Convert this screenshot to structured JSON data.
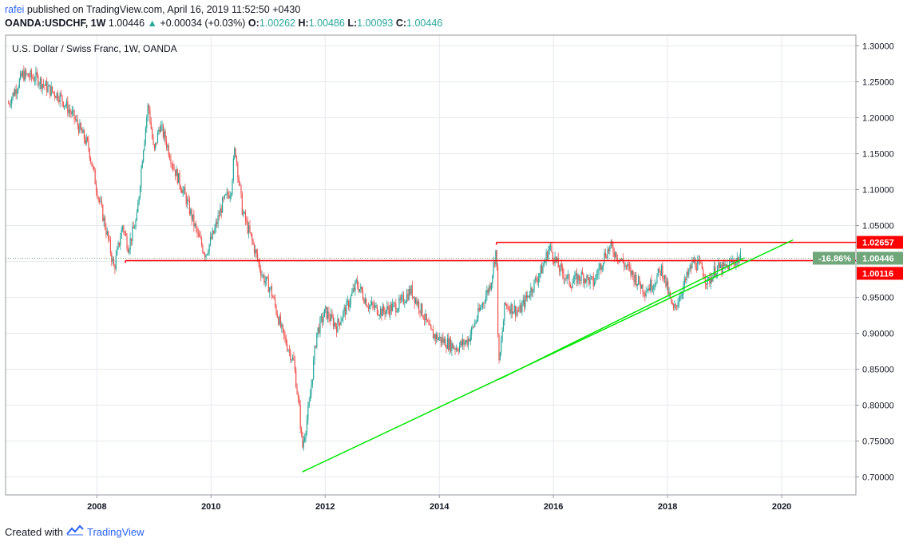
{
  "header": {
    "author": "rafei",
    "published_text": "published on TradingView.com, April 16, 2019 11:52:50 +0430",
    "symbol": "OANDA:USDCHF, 1W",
    "price": "1.00446",
    "change_arrow": "▲",
    "change": "+0.00034 (+0.03%)",
    "o_label": "O:",
    "o_value": "1.00262",
    "h_label": "H:",
    "h_value": "1.00486",
    "l_label": "L:",
    "l_value": "1.00093",
    "c_label": "C:",
    "c_value": "1.00446"
  },
  "footer": {
    "created_with": "Created with",
    "brand": "TradingView",
    "logo_icon": "tradingview-logo-icon"
  },
  "colors": {
    "up": "#26a69a",
    "down": "#ef5350",
    "resistance_line": "#ff0000",
    "trend_line": "#00e600",
    "current_price_label": "#6fa77a",
    "grid": "#e6e9ef"
  },
  "chart_data": {
    "type": "candlestick",
    "title": "U.S. Dollar / Swiss Franc, 1W, OANDA",
    "x_ticks": [
      "2008",
      "2010",
      "2012",
      "2014",
      "2016",
      "2018",
      "2020"
    ],
    "x_tick_values": [
      2008,
      2010,
      2012,
      2014,
      2016,
      2018,
      2020
    ],
    "y_ticks": [
      "1.30000",
      "1.25000",
      "1.20000",
      "1.15000",
      "1.10000",
      "1.05000",
      "1.00000",
      "0.95000",
      "0.90000",
      "0.85000",
      "0.80000",
      "0.75000",
      "0.70000"
    ],
    "y_tick_values": [
      1.3,
      1.25,
      1.2,
      1.15,
      1.1,
      1.05,
      1.0,
      0.95,
      0.9,
      0.85,
      0.8,
      0.75,
      0.7
    ],
    "xlim": [
      2006.4,
      2021.3
    ],
    "ylim": [
      0.675,
      1.315
    ],
    "price_path": [
      [
        2006.45,
        1.22
      ],
      [
        2006.7,
        1.26
      ],
      [
        2006.95,
        1.255
      ],
      [
        2007.15,
        1.24
      ],
      [
        2007.35,
        1.23
      ],
      [
        2007.6,
        1.2
      ],
      [
        2007.85,
        1.16
      ],
      [
        2008.0,
        1.1
      ],
      [
        2008.2,
        1.03
      ],
      [
        2008.3,
        0.99
      ],
      [
        2008.45,
        1.05
      ],
      [
        2008.55,
        1.02
      ],
      [
        2008.7,
        1.06
      ],
      [
        2008.8,
        1.15
      ],
      [
        2008.9,
        1.22
      ],
      [
        2009.0,
        1.15
      ],
      [
        2009.1,
        1.19
      ],
      [
        2009.2,
        1.17
      ],
      [
        2009.35,
        1.13
      ],
      [
        2009.55,
        1.09
      ],
      [
        2009.75,
        1.04
      ],
      [
        2009.9,
        1.01
      ],
      [
        2010.05,
        1.04
      ],
      [
        2010.2,
        1.08
      ],
      [
        2010.35,
        1.1
      ],
      [
        2010.42,
        1.16
      ],
      [
        2010.55,
        1.07
      ],
      [
        2010.75,
        1.02
      ],
      [
        2010.9,
        0.98
      ],
      [
        2011.05,
        0.96
      ],
      [
        2011.25,
        0.9
      ],
      [
        2011.45,
        0.86
      ],
      [
        2011.55,
        0.79
      ],
      [
        2011.6,
        0.74
      ],
      [
        2011.72,
        0.8
      ],
      [
        2011.85,
        0.9
      ],
      [
        2012.0,
        0.93
      ],
      [
        2012.2,
        0.91
      ],
      [
        2012.4,
        0.94
      ],
      [
        2012.55,
        0.97
      ],
      [
        2012.75,
        0.94
      ],
      [
        2013.0,
        0.93
      ],
      [
        2013.3,
        0.94
      ],
      [
        2013.5,
        0.96
      ],
      [
        2013.7,
        0.93
      ],
      [
        2013.85,
        0.9
      ],
      [
        2014.05,
        0.89
      ],
      [
        2014.3,
        0.88
      ],
      [
        2014.5,
        0.89
      ],
      [
        2014.7,
        0.93
      ],
      [
        2014.9,
        0.97
      ],
      [
        2015.0,
        1.02
      ],
      [
        2015.04,
        0.85
      ],
      [
        2015.15,
        0.94
      ],
      [
        2015.4,
        0.93
      ],
      [
        2015.6,
        0.96
      ],
      [
        2015.8,
        0.99
      ],
      [
        2015.93,
        1.02
      ],
      [
        2016.1,
        0.99
      ],
      [
        2016.3,
        0.97
      ],
      [
        2016.5,
        0.98
      ],
      [
        2016.7,
        0.97
      ],
      [
        2016.9,
        1.01
      ],
      [
        2017.0,
        1.02
      ],
      [
        2017.2,
        1.0
      ],
      [
        2017.4,
        0.98
      ],
      [
        2017.6,
        0.96
      ],
      [
        2017.75,
        0.97
      ],
      [
        2017.9,
        0.99
      ],
      [
        2018.0,
        0.96
      ],
      [
        2018.1,
        0.93
      ],
      [
        2018.3,
        0.97
      ],
      [
        2018.45,
        1.0
      ],
      [
        2018.6,
        0.99
      ],
      [
        2018.7,
        0.97
      ],
      [
        2018.85,
        0.99
      ],
      [
        2019.0,
        0.99
      ],
      [
        2019.15,
        1.0
      ],
      [
        2019.29,
        1.00446
      ]
    ],
    "horizontal_lines": [
      {
        "name": "resistance",
        "value": 1.02657,
        "label": "1.02657",
        "from_year": 2015.0
      },
      {
        "name": "support",
        "value": 1.00116,
        "label": "1.00116",
        "from_year": 2008.5
      }
    ],
    "trend_lines": [
      {
        "name": "ascending-trend",
        "points": [
          [
            2011.6,
            0.707
          ],
          [
            2020.2,
            1.03
          ]
        ]
      },
      {
        "name": "pennant-lower",
        "points": [
          [
            2015.05,
            0.836
          ],
          [
            2019.35,
            1.005
          ]
        ]
      }
    ],
    "current_price": {
      "value": 1.00446,
      "label": "1.00446",
      "change_label": "-16.86%"
    }
  }
}
